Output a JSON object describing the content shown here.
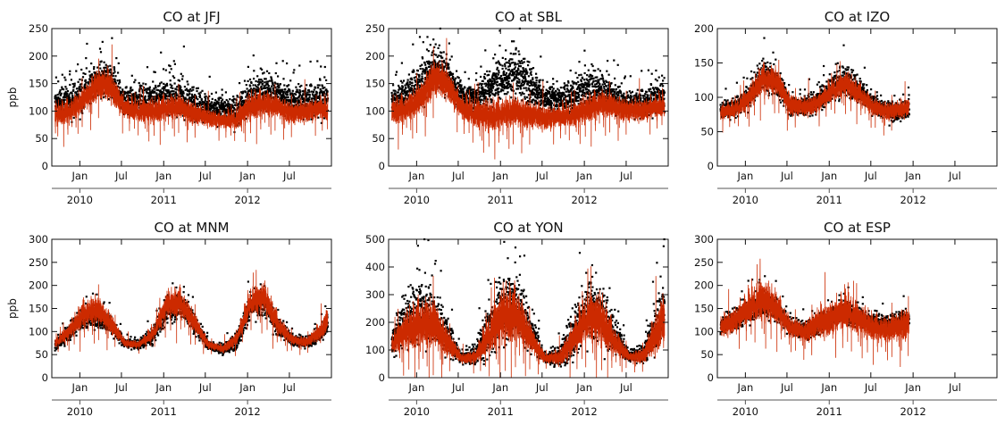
{
  "chart_data": [
    {
      "type": "scatter",
      "title": "CO at JFJ",
      "ylabel": "ppb",
      "ylim": [
        0,
        250
      ],
      "yticks": [
        "0",
        "50",
        "100",
        "150",
        "200",
        "250"
      ],
      "x_month_ticks": [
        "Jan",
        "Jul",
        "Jan",
        "Jul",
        "Jan",
        "Jul"
      ],
      "x_year_ticks": [
        "2010",
        "2011",
        "2012"
      ],
      "x_range": [
        "2009-09",
        "2012-12"
      ],
      "series": [
        {
          "kind": "observations",
          "color": "#000000",
          "x": [
            "2009-09",
            "2009-11",
            "2010-01",
            "2010-03",
            "2010-05",
            "2010-07",
            "2010-09",
            "2010-11",
            "2011-01",
            "2011-03",
            "2011-05",
            "2011-07",
            "2011-09",
            "2011-11",
            "2012-01",
            "2012-03",
            "2012-05",
            "2012-07",
            "2012-09",
            "2012-11",
            "2012-12"
          ],
          "y": [
            115,
            118,
            130,
            155,
            155,
            118,
            120,
            122,
            125,
            125,
            112,
            105,
            100,
            100,
            125,
            135,
            128,
            120,
            118,
            122,
            118
          ],
          "spread": [
            20,
            22,
            28,
            30,
            30,
            20,
            20,
            25,
            30,
            30,
            25,
            20,
            22,
            22,
            30,
            28,
            25,
            25,
            25,
            30,
            30
          ]
        },
        {
          "kind": "model",
          "color": "#cc2a00",
          "x": [
            "2009-09",
            "2009-11",
            "2010-01",
            "2010-03",
            "2010-05",
            "2010-07",
            "2010-09",
            "2010-11",
            "2011-01",
            "2011-03",
            "2011-05",
            "2011-07",
            "2011-09",
            "2011-11",
            "2012-01",
            "2012-03",
            "2012-05",
            "2012-07",
            "2012-09",
            "2012-11",
            "2012-12"
          ],
          "y": [
            95,
            100,
            120,
            148,
            145,
            105,
            100,
            100,
            108,
            108,
            95,
            88,
            82,
            85,
            110,
            115,
            108,
            95,
            100,
            105,
            100
          ],
          "spread": [
            18,
            20,
            20,
            25,
            25,
            20,
            20,
            20,
            20,
            20,
            18,
            15,
            15,
            18,
            22,
            22,
            18,
            18,
            18,
            20,
            20
          ]
        }
      ]
    },
    {
      "type": "scatter",
      "title": "CO at SBL",
      "ylabel": "",
      "ylim": [
        0,
        250
      ],
      "yticks": [
        "0",
        "50",
        "100",
        "150",
        "200",
        "250"
      ],
      "x_month_ticks": [
        "Jan",
        "Jul",
        "Jan",
        "Jul",
        "Jan",
        "Jul"
      ],
      "x_year_ticks": [
        "2010",
        "2011",
        "2012"
      ],
      "x_range": [
        "2009-09",
        "2012-12"
      ],
      "series": [
        {
          "kind": "observations",
          "color": "#000000",
          "x": [
            "2009-09",
            "2009-11",
            "2010-01",
            "2010-03",
            "2010-05",
            "2010-07",
            "2010-09",
            "2010-11",
            "2011-01",
            "2011-03",
            "2011-05",
            "2011-07",
            "2011-09",
            "2011-11",
            "2012-01",
            "2012-03",
            "2012-05",
            "2012-07",
            "2012-09",
            "2012-11",
            "2012-12"
          ],
          "y": [
            120,
            130,
            150,
            175,
            165,
            128,
            122,
            140,
            165,
            168,
            145,
            120,
            120,
            128,
            140,
            135,
            125,
            112,
            115,
            125,
            125
          ],
          "spread": [
            20,
            25,
            35,
            35,
            30,
            22,
            22,
            28,
            35,
            35,
            30,
            22,
            22,
            25,
            30,
            28,
            25,
            20,
            22,
            25,
            25
          ]
        },
        {
          "kind": "model",
          "color": "#cc2a00",
          "x": [
            "2009-09",
            "2009-11",
            "2010-01",
            "2010-03",
            "2010-05",
            "2010-07",
            "2010-09",
            "2010-11",
            "2011-01",
            "2011-03",
            "2011-05",
            "2011-07",
            "2011-09",
            "2011-11",
            "2012-01",
            "2012-03",
            "2012-05",
            "2012-07",
            "2012-09",
            "2012-11",
            "2012-12"
          ],
          "y": [
            100,
            105,
            122,
            160,
            150,
            105,
            95,
            92,
            98,
            100,
            92,
            88,
            90,
            92,
            105,
            115,
            108,
            100,
            102,
            108,
            108
          ],
          "spread": [
            22,
            22,
            25,
            30,
            25,
            22,
            25,
            25,
            25,
            25,
            22,
            20,
            20,
            20,
            22,
            22,
            20,
            18,
            18,
            20,
            20
          ]
        }
      ]
    },
    {
      "type": "scatter",
      "title": "CO at IZO",
      "ylabel": "",
      "ylim": [
        0,
        200
      ],
      "yticks": [
        "0",
        "50",
        "100",
        "150",
        "200"
      ],
      "x_month_ticks": [
        "Jan",
        "Jul",
        "Jan",
        "Jul",
        "Jan",
        "Jul"
      ],
      "x_year_ticks": [
        "2010",
        "2011",
        "2012"
      ],
      "x_range": [
        "2009-09",
        "2012-12"
      ],
      "series": [
        {
          "kind": "observations",
          "color": "#000000",
          "x": [
            "2009-09",
            "2009-11",
            "2010-01",
            "2010-03",
            "2010-05",
            "2010-07",
            "2010-09",
            "2010-11",
            "2011-01",
            "2011-03",
            "2011-05",
            "2011-07",
            "2011-09",
            "2011-11",
            "2011-12"
          ],
          "y": [
            80,
            85,
            100,
            130,
            125,
            90,
            85,
            95,
            115,
            125,
            110,
            88,
            80,
            78,
            85
          ],
          "spread": [
            12,
            12,
            15,
            18,
            18,
            12,
            12,
            15,
            18,
            18,
            15,
            12,
            12,
            12,
            12
          ]
        },
        {
          "kind": "model",
          "color": "#cc2a00",
          "x": [
            "2009-09",
            "2009-11",
            "2010-01",
            "2010-03",
            "2010-05",
            "2010-07",
            "2010-09",
            "2010-11",
            "2011-01",
            "2011-03",
            "2011-05",
            "2011-07",
            "2011-09",
            "2011-11",
            "2011-12"
          ],
          "y": [
            78,
            82,
            98,
            128,
            125,
            90,
            85,
            92,
            110,
            120,
            105,
            85,
            80,
            82,
            88
          ],
          "spread": [
            12,
            12,
            15,
            18,
            18,
            14,
            12,
            14,
            16,
            16,
            14,
            12,
            12,
            12,
            12
          ]
        }
      ]
    },
    {
      "type": "scatter",
      "title": "CO at MNM",
      "ylabel": "ppb",
      "ylim": [
        0,
        300
      ],
      "yticks": [
        "0",
        "50",
        "100",
        "150",
        "200",
        "250",
        "300"
      ],
      "x_month_ticks": [
        "Jan",
        "Jul",
        "Jan",
        "Jul",
        "Jan",
        "Jul"
      ],
      "x_year_ticks": [
        "2010",
        "2011",
        "2012"
      ],
      "x_range": [
        "2009-09",
        "2012-12"
      ],
      "series": [
        {
          "kind": "observations",
          "color": "#000000",
          "x": [
            "2009-09",
            "2009-11",
            "2010-01",
            "2010-03",
            "2010-05",
            "2010-07",
            "2010-09",
            "2010-11",
            "2011-01",
            "2011-03",
            "2011-05",
            "2011-07",
            "2011-09",
            "2011-11",
            "2012-01",
            "2012-03",
            "2012-05",
            "2012-07",
            "2012-09",
            "2012-11",
            "2012-12"
          ],
          "y": [
            70,
            95,
            130,
            130,
            115,
            75,
            70,
            90,
            150,
            160,
            115,
            70,
            60,
            80,
            155,
            160,
            110,
            80,
            75,
            95,
            120
          ],
          "spread": [
            10,
            15,
            20,
            20,
            18,
            8,
            8,
            15,
            25,
            25,
            18,
            8,
            8,
            15,
            25,
            25,
            18,
            10,
            10,
            15,
            18
          ]
        },
        {
          "kind": "model",
          "color": "#cc2a00",
          "x": [
            "2009-09",
            "2009-11",
            "2010-01",
            "2010-03",
            "2010-05",
            "2010-07",
            "2010-09",
            "2010-11",
            "2011-01",
            "2011-03",
            "2011-05",
            "2011-07",
            "2011-09",
            "2011-11",
            "2012-01",
            "2012-03",
            "2012-05",
            "2012-07",
            "2012-09",
            "2012-11",
            "2012-12"
          ],
          "y": [
            75,
            100,
            140,
            150,
            120,
            75,
            72,
            95,
            160,
            165,
            120,
            72,
            62,
            85,
            165,
            175,
            115,
            82,
            78,
            100,
            130
          ],
          "spread": [
            10,
            15,
            25,
            28,
            20,
            8,
            8,
            15,
            25,
            28,
            20,
            8,
            8,
            15,
            28,
            28,
            20,
            10,
            10,
            18,
            25
          ]
        }
      ]
    },
    {
      "type": "scatter",
      "title": "CO at YON",
      "ylabel": "",
      "ylim": [
        0,
        500
      ],
      "yticks": [
        "0",
        "100",
        "200",
        "300",
        "400",
        "500"
      ],
      "x_month_ticks": [
        "Jan",
        "Jul",
        "Jan",
        "Jul",
        "Jan",
        "Jul"
      ],
      "x_year_ticks": [
        "2010",
        "2011",
        "2012"
      ],
      "x_range": [
        "2009-09",
        "2012-12"
      ],
      "series": [
        {
          "kind": "observations",
          "color": "#000000",
          "x": [
            "2009-09",
            "2009-11",
            "2010-01",
            "2010-03",
            "2010-05",
            "2010-07",
            "2010-09",
            "2010-11",
            "2011-01",
            "2011-03",
            "2011-05",
            "2011-07",
            "2011-09",
            "2011-11",
            "2012-01",
            "2012-03",
            "2012-05",
            "2012-07",
            "2012-09",
            "2012-11",
            "2012-12"
          ],
          "y": [
            130,
            200,
            240,
            230,
            150,
            70,
            80,
            180,
            270,
            260,
            160,
            70,
            75,
            160,
            240,
            230,
            150,
            75,
            85,
            200,
            270
          ],
          "spread": [
            40,
            80,
            110,
            100,
            60,
            15,
            30,
            90,
            110,
            100,
            60,
            15,
            30,
            80,
            100,
            90,
            60,
            15,
            30,
            90,
            110
          ]
        },
        {
          "kind": "model",
          "color": "#cc2a00",
          "x": [
            "2009-09",
            "2009-11",
            "2010-01",
            "2010-03",
            "2010-05",
            "2010-07",
            "2010-09",
            "2010-11",
            "2011-01",
            "2011-03",
            "2011-05",
            "2011-07",
            "2011-09",
            "2011-11",
            "2012-01",
            "2012-03",
            "2012-05",
            "2012-07",
            "2012-09",
            "2012-11",
            "2012-12"
          ],
          "y": [
            120,
            170,
            200,
            200,
            130,
            70,
            75,
            160,
            230,
            230,
            140,
            70,
            72,
            140,
            220,
            210,
            130,
            75,
            80,
            170,
            230
          ],
          "spread": [
            35,
            60,
            80,
            80,
            45,
            15,
            25,
            70,
            90,
            90,
            45,
            15,
            25,
            60,
            80,
            80,
            45,
            15,
            25,
            70,
            90
          ]
        }
      ]
    },
    {
      "type": "scatter",
      "title": "CO at ESP",
      "ylabel": "",
      "ylim": [
        0,
        300
      ],
      "yticks": [
        "0",
        "50",
        "100",
        "150",
        "200",
        "250",
        "300"
      ],
      "x_month_ticks": [
        "Jan",
        "Jul",
        "Jan",
        "Jul",
        "Jan",
        "Jul"
      ],
      "x_year_ticks": [
        "2010",
        "2011",
        "2012"
      ],
      "x_range": [
        "2009-09",
        "2012-12"
      ],
      "series": [
        {
          "kind": "observations",
          "color": "#000000",
          "x": [
            "2009-09",
            "2009-11",
            "2010-01",
            "2010-03",
            "2010-05",
            "2010-07",
            "2010-09",
            "2010-11",
            "2011-01",
            "2011-03",
            "2011-05",
            "2011-07",
            "2011-09",
            "2011-11",
            "2011-12"
          ],
          "y": [
            110,
            125,
            145,
            160,
            150,
            110,
            100,
            115,
            135,
            140,
            130,
            120,
            115,
            125,
            125
          ],
          "spread": [
            15,
            20,
            25,
            25,
            22,
            15,
            15,
            18,
            20,
            20,
            18,
            15,
            15,
            18,
            18
          ]
        },
        {
          "kind": "model",
          "color": "#cc2a00",
          "x": [
            "2009-09",
            "2009-11",
            "2010-01",
            "2010-03",
            "2010-05",
            "2010-07",
            "2010-09",
            "2010-11",
            "2011-01",
            "2011-03",
            "2011-05",
            "2011-07",
            "2011-09",
            "2011-11",
            "2011-12"
          ],
          "y": [
            108,
            125,
            150,
            170,
            155,
            110,
            100,
            118,
            130,
            145,
            125,
            110,
            105,
            115,
            120
          ],
          "spread": [
            20,
            25,
            35,
            40,
            30,
            20,
            20,
            30,
            35,
            40,
            30,
            25,
            25,
            30,
            30
          ]
        }
      ]
    }
  ]
}
